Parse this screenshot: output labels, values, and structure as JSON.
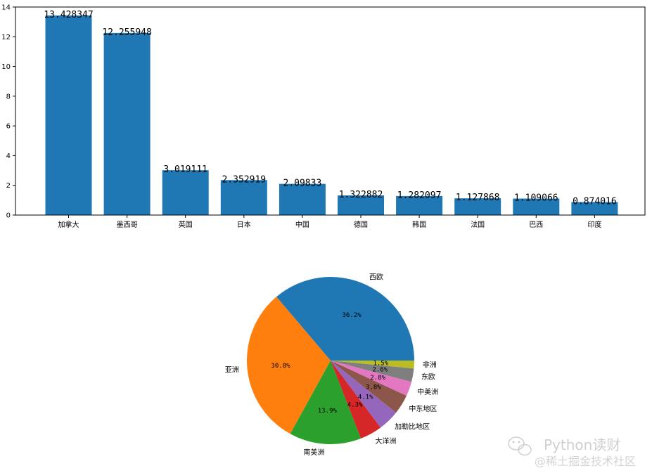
{
  "chart_data": [
    {
      "type": "bar",
      "categories": [
        "加拿大",
        "墨西哥",
        "英国",
        "日本",
        "中国",
        "德国",
        "韩国",
        "法国",
        "巴西",
        "印度"
      ],
      "values": [
        13.428347,
        12.255948,
        3.019111,
        2.352919,
        2.09833,
        1.322882,
        1.282097,
        1.127868,
        1.109066,
        0.874016
      ],
      "value_labels": [
        "13.428347",
        "12.255948",
        "3.019111",
        "2.352919",
        "2.09833",
        "1.322882",
        "1.282097",
        "1.127868",
        "1.109066",
        "0.874016"
      ],
      "ylim": [
        0,
        14
      ],
      "yticks": [
        "0",
        "2",
        "4",
        "6",
        "8",
        "10",
        "12",
        "14"
      ],
      "color": "#1f77b4",
      "grid": false
    },
    {
      "type": "pie",
      "labels": [
        "西欧",
        "亚洲",
        "南美洲",
        "大洋洲",
        "加勒比地区",
        "中东地区",
        "中美洲",
        "东欧",
        "非洲"
      ],
      "values": [
        36.2,
        30.8,
        13.9,
        4.3,
        4.1,
        3.8,
        2.8,
        2.6,
        1.5
      ],
      "pct_labels": [
        "36.2%",
        "30.8%",
        "13.9%",
        "4.3%",
        "4.1%",
        "3.8%",
        "2.8%",
        "2.6%",
        "1.5%"
      ],
      "colors": [
        "#1f77b4",
        "#ff7f0e",
        "#2ca02c",
        "#d62728",
        "#9467bd",
        "#8c564b",
        "#e377c2",
        "#7f7f7f",
        "#bcbd22"
      ]
    }
  ],
  "watermark": {
    "line1": "Python读财",
    "line2": "@稀土掘金技术社区",
    "icon": "wechat-icon"
  }
}
